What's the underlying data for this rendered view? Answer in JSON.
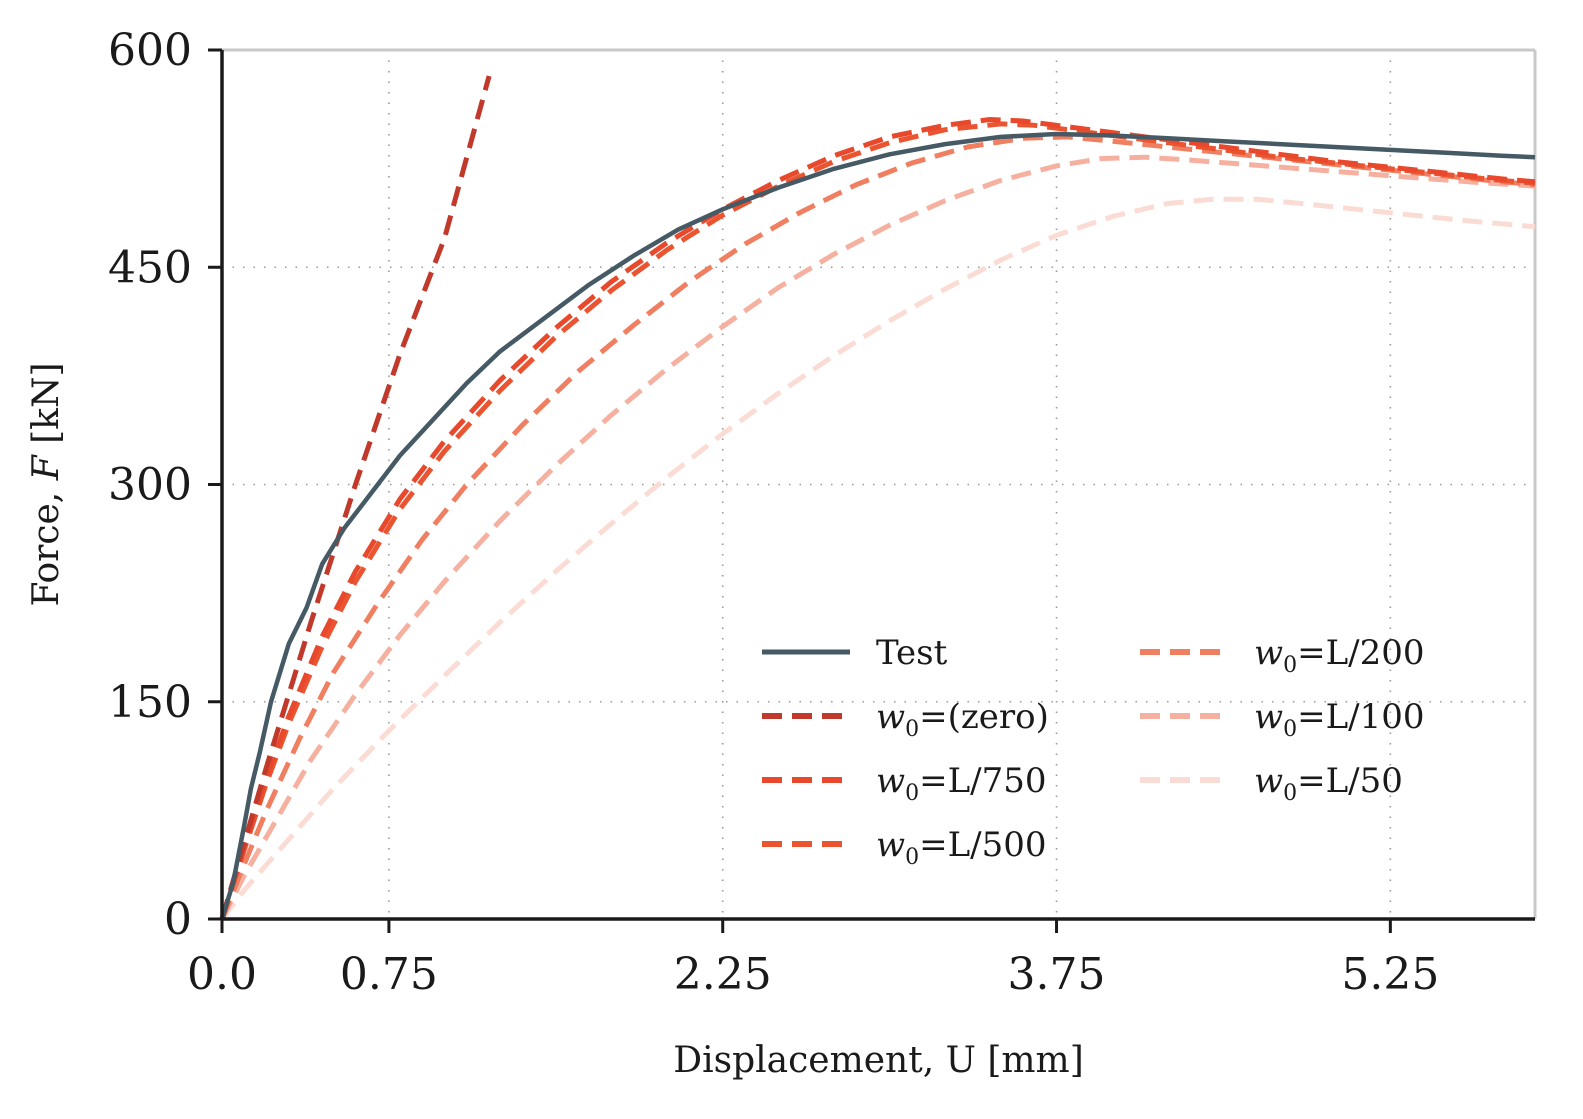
{
  "chart_data": {
    "type": "line",
    "title": "",
    "xlabel": "Displacement, U [mm]",
    "ylabel_prefix": "Force, ",
    "ylabel_var": "F",
    "ylabel_suffix": " [kN]",
    "xlim": [
      0,
      5.9
    ],
    "ylim": [
      0,
      600
    ],
    "xticks": [
      0.0,
      0.75,
      2.25,
      3.75,
      5.25
    ],
    "xtick_labels": [
      "0.0",
      "0.75",
      "2.25",
      "3.75",
      "5.25"
    ],
    "yticks": [
      0,
      150,
      300,
      450,
      600
    ],
    "ytick_labels": [
      "0",
      "150",
      "300",
      "450",
      "600"
    ],
    "grid": "dotted",
    "legend_position": "lower-right",
    "series": [
      {
        "name": "Test",
        "legend_var": "",
        "legend_text": "Test",
        "color": "#455a64",
        "dash": "solid",
        "points": [
          [
            0,
            0
          ],
          [
            0.05,
            25
          ],
          [
            0.1,
            65
          ],
          [
            0.13,
            90
          ],
          [
            0.17,
            115
          ],
          [
            0.22,
            150
          ],
          [
            0.3,
            190
          ],
          [
            0.38,
            215
          ],
          [
            0.45,
            245
          ],
          [
            0.55,
            270
          ],
          [
            0.65,
            290
          ],
          [
            0.8,
            320
          ],
          [
            0.95,
            345
          ],
          [
            1.1,
            370
          ],
          [
            1.25,
            392
          ],
          [
            1.45,
            415
          ],
          [
            1.65,
            438
          ],
          [
            1.85,
            458
          ],
          [
            2.05,
            476
          ],
          [
            2.25,
            490
          ],
          [
            2.5,
            505
          ],
          [
            2.75,
            518
          ],
          [
            3.0,
            528
          ],
          [
            3.25,
            535
          ],
          [
            3.5,
            540
          ],
          [
            3.75,
            542
          ],
          [
            4.0,
            541
          ],
          [
            4.25,
            539
          ],
          [
            4.5,
            537
          ],
          [
            4.75,
            535
          ],
          [
            5.0,
            533
          ],
          [
            5.25,
            531
          ],
          [
            5.5,
            529
          ],
          [
            5.75,
            527
          ],
          [
            5.9,
            526
          ]
        ]
      },
      {
        "name": "w0=(zero)",
        "legend_var": "w",
        "legend_sub": "0",
        "legend_text": "=(zero)",
        "color": "#c0392b",
        "dash": "dashed",
        "points": [
          [
            0,
            0
          ],
          [
            0.2,
            105
          ],
          [
            0.4,
            205
          ],
          [
            0.6,
            300
          ],
          [
            0.8,
            390
          ],
          [
            1.0,
            470
          ],
          [
            1.2,
            582
          ]
        ]
      },
      {
        "name": "w0=L/750",
        "legend_var": "w",
        "legend_sub": "0",
        "legend_text": "=L/750",
        "color": "#e8482c",
        "dash": "dashed",
        "points": [
          [
            0,
            0
          ],
          [
            0.1,
            50
          ],
          [
            0.2,
            98
          ],
          [
            0.3,
            140
          ],
          [
            0.45,
            195
          ],
          [
            0.6,
            240
          ],
          [
            0.8,
            290
          ],
          [
            1.0,
            330
          ],
          [
            1.25,
            372
          ],
          [
            1.5,
            408
          ],
          [
            1.75,
            440
          ],
          [
            2.0,
            467
          ],
          [
            2.25,
            490
          ],
          [
            2.5,
            510
          ],
          [
            2.75,
            527
          ],
          [
            3.0,
            540
          ],
          [
            3.25,
            548
          ],
          [
            3.45,
            552
          ],
          [
            3.6,
            551
          ],
          [
            3.75,
            548
          ],
          [
            4.0,
            543
          ],
          [
            4.25,
            538
          ],
          [
            4.5,
            533
          ],
          [
            4.75,
            528
          ],
          [
            5.0,
            523
          ],
          [
            5.25,
            519
          ],
          [
            5.5,
            515
          ],
          [
            5.75,
            511
          ],
          [
            5.9,
            509
          ]
        ]
      },
      {
        "name": "w0=L/500",
        "legend_var": "w",
        "legend_sub": "0",
        "legend_text": "=L/500",
        "color": "#ea5430",
        "dash": "dashed",
        "points": [
          [
            0,
            0
          ],
          [
            0.1,
            48
          ],
          [
            0.2,
            94
          ],
          [
            0.3,
            135
          ],
          [
            0.45,
            188
          ],
          [
            0.6,
            233
          ],
          [
            0.8,
            283
          ],
          [
            1.0,
            323
          ],
          [
            1.25,
            365
          ],
          [
            1.5,
            402
          ],
          [
            1.75,
            434
          ],
          [
            2.0,
            462
          ],
          [
            2.25,
            486
          ],
          [
            2.5,
            506
          ],
          [
            2.75,
            523
          ],
          [
            3.0,
            536
          ],
          [
            3.25,
            545
          ],
          [
            3.5,
            549
          ],
          [
            3.65,
            548
          ],
          [
            3.75,
            546
          ],
          [
            4.0,
            541
          ],
          [
            4.25,
            536
          ],
          [
            4.5,
            531
          ],
          [
            4.75,
            526
          ],
          [
            5.0,
            522
          ],
          [
            5.25,
            518
          ],
          [
            5.5,
            514
          ],
          [
            5.75,
            510
          ],
          [
            5.9,
            508
          ]
        ]
      },
      {
        "name": "w0=L/200",
        "legend_var": "w",
        "legend_sub": "0",
        "legend_text": "=L/200",
        "color": "#f07e60",
        "dash": "dashed",
        "points": [
          [
            0,
            0
          ],
          [
            0.1,
            38
          ],
          [
            0.2,
            75
          ],
          [
            0.35,
            125
          ],
          [
            0.5,
            170
          ],
          [
            0.7,
            218
          ],
          [
            0.9,
            262
          ],
          [
            1.1,
            300
          ],
          [
            1.35,
            341
          ],
          [
            1.6,
            378
          ],
          [
            1.85,
            410
          ],
          [
            2.1,
            440
          ],
          [
            2.35,
            466
          ],
          [
            2.6,
            488
          ],
          [
            2.85,
            507
          ],
          [
            3.1,
            522
          ],
          [
            3.35,
            533
          ],
          [
            3.6,
            539
          ],
          [
            3.8,
            540
          ],
          [
            4.0,
            537
          ],
          [
            4.25,
            533
          ],
          [
            4.5,
            529
          ],
          [
            4.75,
            525
          ],
          [
            5.0,
            521
          ],
          [
            5.25,
            517
          ],
          [
            5.5,
            513
          ],
          [
            5.75,
            509
          ],
          [
            5.9,
            507
          ]
        ]
      },
      {
        "name": "w0=L/100",
        "legend_var": "w",
        "legend_sub": "0",
        "legend_text": "=L/100",
        "color": "#f6b0a0",
        "dash": "dashed",
        "points": [
          [
            0,
            0
          ],
          [
            0.1,
            30
          ],
          [
            0.25,
            70
          ],
          [
            0.4,
            110
          ],
          [
            0.6,
            155
          ],
          [
            0.8,
            196
          ],
          [
            1.0,
            233
          ],
          [
            1.25,
            275
          ],
          [
            1.5,
            313
          ],
          [
            1.75,
            348
          ],
          [
            2.0,
            380
          ],
          [
            2.25,
            409
          ],
          [
            2.5,
            436
          ],
          [
            2.75,
            459
          ],
          [
            3.0,
            479
          ],
          [
            3.25,
            496
          ],
          [
            3.5,
            510
          ],
          [
            3.75,
            520
          ],
          [
            3.95,
            525
          ],
          [
            4.15,
            526
          ],
          [
            4.35,
            524
          ],
          [
            4.6,
            521
          ],
          [
            4.85,
            518
          ],
          [
            5.1,
            515
          ],
          [
            5.35,
            512
          ],
          [
            5.6,
            509
          ],
          [
            5.9,
            506
          ]
        ]
      },
      {
        "name": "w0=L/50",
        "legend_var": "w",
        "legend_sub": "0",
        "legend_text": "=L/50",
        "color": "#fbdcd4",
        "dash": "dashed",
        "points": [
          [
            0,
            0
          ],
          [
            0.1,
            20
          ],
          [
            0.3,
            55
          ],
          [
            0.5,
            90
          ],
          [
            0.75,
            130
          ],
          [
            1.0,
            168
          ],
          [
            1.25,
            205
          ],
          [
            1.5,
            240
          ],
          [
            1.75,
            273
          ],
          [
            2.0,
            305
          ],
          [
            2.25,
            335
          ],
          [
            2.5,
            363
          ],
          [
            2.75,
            389
          ],
          [
            3.0,
            413
          ],
          [
            3.25,
            435
          ],
          [
            3.5,
            455
          ],
          [
            3.75,
            472
          ],
          [
            4.0,
            485
          ],
          [
            4.25,
            494
          ],
          [
            4.45,
            497
          ],
          [
            4.65,
            497
          ],
          [
            4.85,
            494
          ],
          [
            5.1,
            490
          ],
          [
            5.35,
            486
          ],
          [
            5.6,
            482
          ],
          [
            5.9,
            478
          ]
        ]
      }
    ]
  }
}
